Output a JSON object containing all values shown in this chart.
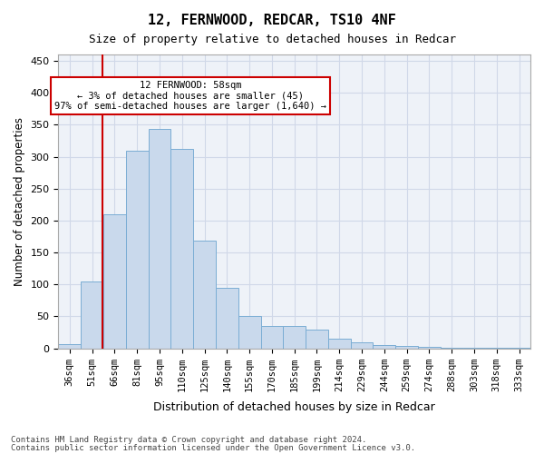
{
  "title1": "12, FERNWOOD, REDCAR, TS10 4NF",
  "title2": "Size of property relative to detached houses in Redcar",
  "xlabel": "Distribution of detached houses by size in Redcar",
  "ylabel": "Number of detached properties",
  "categories": [
    "36sqm",
    "51sqm",
    "66sqm",
    "81sqm",
    "95sqm",
    "110sqm",
    "125sqm",
    "140sqm",
    "155sqm",
    "170sqm",
    "185sqm",
    "199sqm",
    "214sqm",
    "229sqm",
    "244sqm",
    "259sqm",
    "274sqm",
    "288sqm",
    "303sqm",
    "318sqm",
    "333sqm"
  ],
  "values": [
    7,
    105,
    210,
    310,
    343,
    312,
    168,
    95,
    51,
    35,
    35,
    29,
    15,
    9,
    5,
    4,
    2,
    1,
    1,
    1,
    1
  ],
  "bar_color": "#c9d9ec",
  "bar_edge_color": "#7aadd4",
  "grid_color": "#d0d8e8",
  "background_color": "#eef2f8",
  "property_sqm": 58,
  "property_label": "12 FERNWOOD: 58sqm",
  "annotation_line1": "← 3% of detached houses are smaller (45)",
  "annotation_line2": "97% of semi-detached houses are larger (1,640) →",
  "red_line_color": "#cc0000",
  "annotation_box_color": "#ffffff",
  "annotation_box_edge": "#cc0000",
  "ylim": [
    0,
    460
  ],
  "yticks": [
    0,
    50,
    100,
    150,
    200,
    250,
    300,
    350,
    400,
    450
  ],
  "footer1": "Contains HM Land Registry data © Crown copyright and database right 2024.",
  "footer2": "Contains public sector information licensed under the Open Government Licence v3.0."
}
